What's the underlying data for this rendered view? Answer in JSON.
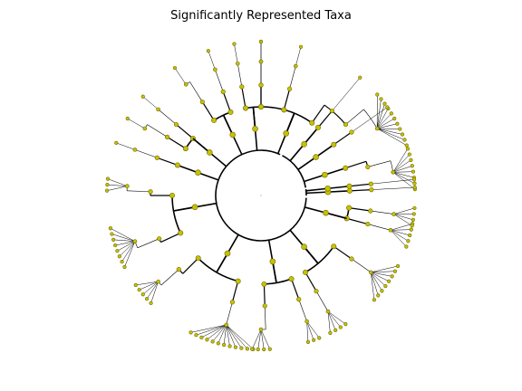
{
  "chart_data": {
    "type": "cladogram",
    "title": "Significantly Represented Taxa",
    "node_color": "#c8c000",
    "node_edge_color": "#6b6b00",
    "branch_color": "#000000",
    "grid": false,
    "legend": false,
    "depth_count": 7,
    "tree": [
      {
        "a1": 65,
        "a2": 357,
        "children": [
          {
            "a": 68,
            "children": [
              {
                "a": 55,
                "children": [
                  {
                    "a": 40,
                    "children": [
                      {
                        "a": 30,
                        "leaves": 11
                      }
                    ]
                  }
                ]
              },
              {
                "a": 75,
                "children": [
                  {
                    "a": 75,
                    "children": [
                      {
                        "a": 75,
                        "leaves": 1
                      }
                    ]
                  }
                ]
              },
              {
                "a": 90,
                "children": [
                  {
                    "a": 90,
                    "children": [
                      {
                        "a": 90,
                        "leaves": 1
                      }
                    ]
                  }
                ]
              }
            ]
          },
          {
            "a": 95,
            "children": [
              {
                "a": 90,
                "children": [
                  {
                    "a": 90,
                    "children": [
                      {
                        "a": 90,
                        "leaves": 1
                      }
                    ]
                  }
                ]
              },
              {
                "a": 100,
                "children": [
                  {
                    "a": 100,
                    "children": [
                      {
                        "a": 100,
                        "leaves": 1
                      }
                    ]
                  }
                ]
              }
            ]
          },
          {
            "a": 115,
            "children": [
              {
                "a": 110,
                "children": [
                  {
                    "a": 110,
                    "children": [
                      {
                        "a": 110,
                        "leaves": 1
                      }
                    ]
                  }
                ]
              },
              {
                "a": 122,
                "children": [
                  {
                    "a": 122,
                    "children": [
                      {
                        "a": 124,
                        "leaves": 1
                      }
                    ]
                  }
                ]
              }
            ]
          },
          {
            "a": 140,
            "children": [
              {
                "a": 140,
                "children": [
                  {
                    "a": 140,
                    "children": [
                      {
                        "a": 140,
                        "leaves": 1
                      }
                    ]
                  }
                ]
              },
              {
                "a": 148,
                "children": [
                  {
                    "a": 148,
                    "children": [
                      {
                        "a": 150,
                        "leaves": 1
                      }
                    ]
                  }
                ]
              }
            ]
          },
          {
            "a": 160,
            "children": [
              {
                "a": 160,
                "children": [
                  {
                    "a": 160,
                    "children": [
                      {
                        "a": 160,
                        "leaves": 1
                      }
                    ]
                  }
                ]
              }
            ]
          },
          {
            "a": 190,
            "children": [
              {
                "a": 180,
                "children": [
                  {
                    "a": 178,
                    "children": [
                      {
                        "a": 176,
                        "leaves": 3
                      }
                    ]
                  }
                ]
              },
              {
                "a": 205,
                "children": [
                  {
                    "a": 203,
                    "children": [
                      {
                        "a": 200,
                        "leaves": 8
                      }
                    ]
                  }
                ]
              }
            ]
          },
          {
            "a": 240,
            "children": [
              {
                "a": 225,
                "children": [
                  {
                    "a": 222,
                    "children": [
                      {
                        "a": 220,
                        "leaves": 5
                      }
                    ]
                  }
                ]
              },
              {
                "a": 255,
                "children": [
                  {
                    "a": 255,
                    "children": [
                      {
                        "a": 255,
                        "leaves": 12
                      }
                    ]
                  }
                ]
              }
            ]
          },
          {
            "a": 280,
            "children": [
              {
                "a": 272,
                "children": [
                  {
                    "a": 272,
                    "children": [
                      {
                        "a": 270,
                        "leaves": 4
                      }
                    ]
                  }
                ]
              },
              {
                "a": 290,
                "children": [
                  {
                    "a": 290,
                    "children": [
                      {
                        "a": 290,
                        "leaves": 3
                      }
                    ]
                  }
                ]
              }
            ]
          },
          {
            "a": 310,
            "children": [
              {
                "a": 300,
                "children": [
                  {
                    "a": 300,
                    "children": [
                      {
                        "a": 300,
                        "leaves": 4
                      }
                    ]
                  }
                ]
              },
              {
                "a": 325,
                "children": [
                  {
                    "a": 325,
                    "children": [
                      {
                        "a": 325,
                        "leaves": 8
                      }
                    ]
                  }
                ]
              }
            ]
          },
          {
            "a": 345,
            "children": [
              {
                "a": 345,
                "children": [
                  {
                    "a": 345,
                    "children": [
                      {
                        "a": 345,
                        "leaves": 5
                      }
                    ]
                  }
                ]
              },
              {
                "a": 352,
                "children": [
                  {
                    "a": 352,
                    "children": [
                      {
                        "a": 352,
                        "leaves": 4
                      }
                    ]
                  }
                ]
              }
            ]
          }
        ]
      },
      {
        "a1": 10,
        "a2": 62,
        "children": [
          {
            "a": 18,
            "children": [
              {
                "a": 18,
                "children": [
                  {
                    "a": 15,
                    "children": [
                      {
                        "a": 10,
                        "leaves": 8
                      }
                    ]
                  }
                ]
              }
            ]
          },
          {
            "a": 35,
            "children": [
              {
                "a": 35,
                "children": [
                  {
                    "a": 35,
                    "leaves": 1
                  }
                ]
              }
            ]
          },
          {
            "a": 50,
            "children": [
              {
                "a": 50,
                "children": [
                  {
                    "a": 50,
                    "leaves": 1
                  }
                ]
              }
            ]
          }
        ]
      },
      {
        "a1": 0,
        "a2": 8,
        "children": [
          {
            "a": 3,
            "children": [
              {
                "a": 3,
                "children": [
                  {
                    "a": 3,
                    "leaves": 1
                  }
                ]
              }
            ]
          },
          {
            "a": 6,
            "children": [
              {
                "a": 6,
                "children": [
                  {
                    "a": 6,
                    "leaves": 1
                  }
                ]
              }
            ]
          }
        ]
      }
    ]
  }
}
